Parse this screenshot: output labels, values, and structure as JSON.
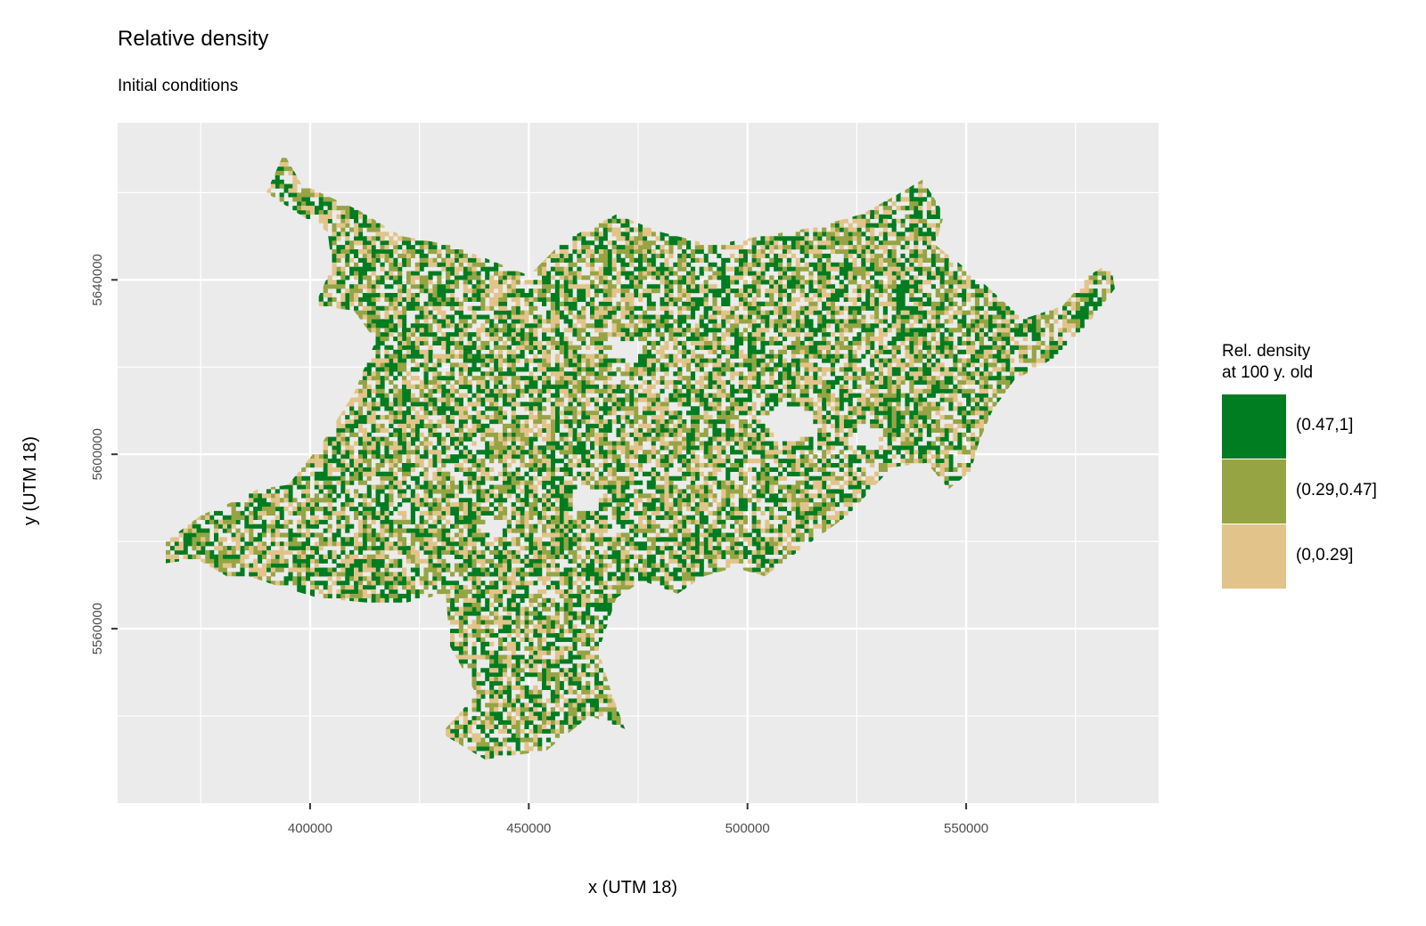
{
  "title": "Relative density",
  "subtitle": "Initial conditions",
  "chart_data": {
    "type": "heatmap",
    "xlabel": "x (UTM 18)",
    "ylabel": "y (UTM 18)",
    "xlim": [
      356000,
      594000
    ],
    "ylim": [
      5520000,
      5676000
    ],
    "x_ticks": [
      400000,
      450000,
      500000,
      550000
    ],
    "x_tick_labels": [
      "400000",
      "450000",
      "500000",
      "550000"
    ],
    "y_ticks": [
      5560000,
      5600000,
      5640000
    ],
    "y_tick_labels": [
      "5560000",
      "5600000",
      "5640000"
    ],
    "grid": true,
    "panel_background": "#ebebeb",
    "legend": {
      "title_lines": [
        "Rel. density",
        "at 100 y. old"
      ],
      "position": "right",
      "classes": [
        {
          "label": "(0.47,1]",
          "color": "#007c21",
          "share": 0.42
        },
        {
          "label": "(0.29,0.47]",
          "color": "#96a444",
          "share": 0.3
        },
        {
          "label": "(0,0.29]",
          "color": "#e2c48a",
          "share": 0.28
        }
      ]
    },
    "region_outline_utm": [
      [
        390000,
        5660000
      ],
      [
        394000,
        5669000
      ],
      [
        398000,
        5662000
      ],
      [
        411000,
        5656000
      ],
      [
        421000,
        5650000
      ],
      [
        432000,
        5648000
      ],
      [
        440000,
        5645000
      ],
      [
        450000,
        5641000
      ],
      [
        458000,
        5649000
      ],
      [
        470000,
        5655000
      ],
      [
        480000,
        5651000
      ],
      [
        492000,
        5648000
      ],
      [
        503000,
        5650000
      ],
      [
        515000,
        5652000
      ],
      [
        526000,
        5655000
      ],
      [
        535000,
        5660000
      ],
      [
        540000,
        5663000
      ],
      [
        545000,
        5655000
      ],
      [
        543000,
        5648000
      ],
      [
        552000,
        5641000
      ],
      [
        563000,
        5631000
      ],
      [
        572000,
        5634000
      ],
      [
        578000,
        5641000
      ],
      [
        583000,
        5644000
      ],
      [
        584000,
        5638000
      ],
      [
        578000,
        5630000
      ],
      [
        570000,
        5622000
      ],
      [
        561000,
        5617000
      ],
      [
        556000,
        5610000
      ],
      [
        553000,
        5603000
      ],
      [
        551000,
        5596000
      ],
      [
        546000,
        5592000
      ],
      [
        541000,
        5598000
      ],
      [
        533000,
        5597000
      ],
      [
        523000,
        5586000
      ],
      [
        512000,
        5578000
      ],
      [
        504000,
        5572000
      ],
      [
        497000,
        5574000
      ],
      [
        490000,
        5572000
      ],
      [
        484000,
        5568000
      ],
      [
        476000,
        5571000
      ],
      [
        470000,
        5567000
      ],
      [
        466000,
        5555000
      ],
      [
        469000,
        5545000
      ],
      [
        472000,
        5537000
      ],
      [
        464000,
        5540000
      ],
      [
        454000,
        5532000
      ],
      [
        440000,
        5530000
      ],
      [
        430000,
        5536000
      ],
      [
        438000,
        5545000
      ],
      [
        432000,
        5556000
      ],
      [
        431000,
        5568000
      ],
      [
        422000,
        5566000
      ],
      [
        413000,
        5566000
      ],
      [
        402000,
        5567000
      ],
      [
        392000,
        5570000
      ],
      [
        386000,
        5572000
      ],
      [
        381000,
        5572000
      ],
      [
        374000,
        5576000
      ],
      [
        367000,
        5575000
      ],
      [
        367000,
        5580000
      ],
      [
        375000,
        5586000
      ],
      [
        382000,
        5589000
      ],
      [
        388000,
        5592000
      ],
      [
        395000,
        5593000
      ],
      [
        403000,
        5603000
      ],
      [
        410000,
        5614000
      ],
      [
        415000,
        5626000
      ],
      [
        410000,
        5633000
      ],
      [
        401000,
        5634000
      ],
      [
        405000,
        5643000
      ],
      [
        404000,
        5651000
      ],
      [
        396000,
        5656000
      ]
    ],
    "holes_utm": [
      [
        [
          507000,
          5612000
        ],
        [
          515000,
          5610000
        ],
        [
          516000,
          5604000
        ],
        [
          508000,
          5603000
        ],
        [
          503000,
          5607000
        ]
      ],
      [
        [
          461000,
          5593000
        ],
        [
          467000,
          5592000
        ],
        [
          466000,
          5587000
        ],
        [
          460000,
          5588000
        ]
      ],
      [
        [
          440000,
          5586000
        ],
        [
          445000,
          5585000
        ],
        [
          444000,
          5581000
        ],
        [
          439000,
          5582000
        ]
      ],
      [
        [
          470000,
          5627000
        ],
        [
          476000,
          5625000
        ],
        [
          475000,
          5621000
        ],
        [
          469000,
          5622000
        ]
      ],
      [
        [
          525000,
          5607000
        ],
        [
          531000,
          5606000
        ],
        [
          530000,
          5601000
        ],
        [
          524000,
          5602000
        ]
      ]
    ],
    "raster_cell_size": 1000
  }
}
